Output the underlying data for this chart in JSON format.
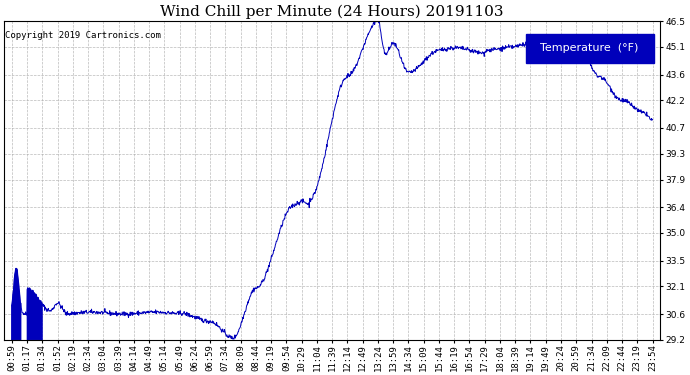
{
  "title": "Wind Chill per Minute (24 Hours) 20191103",
  "copyright_text": "Copyright 2019 Cartronics.com",
  "legend_label": "Temperature  (°F)",
  "line_color": "#0000bb",
  "background_color": "#ffffff",
  "grid_color": "#aaaaaa",
  "ylim": [
    29.2,
    46.5
  ],
  "yticks": [
    29.2,
    30.6,
    32.1,
    33.5,
    35.0,
    36.4,
    37.9,
    39.3,
    40.7,
    42.2,
    43.6,
    45.1,
    46.5
  ],
  "xtick_labels": [
    "00:59",
    "01:17",
    "01:34",
    "01:52",
    "02:19",
    "02:34",
    "03:04",
    "03:39",
    "04:14",
    "04:49",
    "05:14",
    "05:49",
    "06:24",
    "06:59",
    "07:34",
    "08:09",
    "08:44",
    "09:19",
    "09:54",
    "10:29",
    "11:04",
    "11:39",
    "12:14",
    "12:49",
    "13:24",
    "13:59",
    "14:34",
    "15:09",
    "15:44",
    "16:19",
    "16:54",
    "17:29",
    "18:04",
    "18:39",
    "19:14",
    "19:49",
    "20:24",
    "20:59",
    "21:34",
    "22:09",
    "22:44",
    "23:19",
    "23:54"
  ],
  "title_fontsize": 11,
  "tick_fontsize": 6.5,
  "copyright_fontsize": 6.5,
  "legend_fontsize": 8,
  "legend_box_color": "#0000bb",
  "legend_text_color": "#ffffff"
}
